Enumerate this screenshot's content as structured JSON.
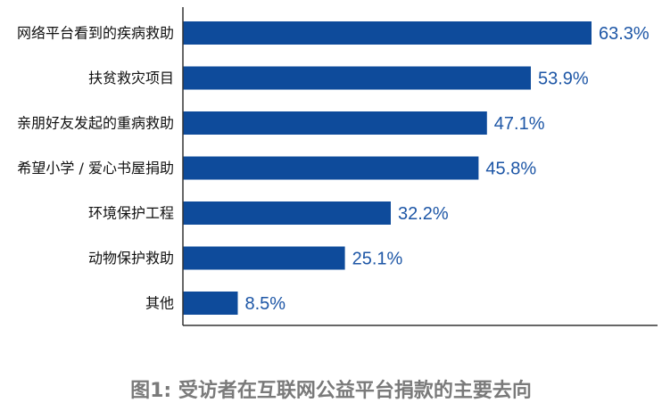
{
  "chart_data": {
    "type": "bar",
    "orientation": "horizontal",
    "title": "图1: 受访者在互联网公益平台捐款的主要去向",
    "categories": [
      "网络平台看到的疾病救助",
      "扶贫救灾项目",
      "亲朋好友发起的重病救助",
      "希望小学 / 爱心书屋捐助",
      "环境保护工程",
      "动物保护救助",
      "其他"
    ],
    "values": [
      63.3,
      53.9,
      47.1,
      45.8,
      32.2,
      25.1,
      8.5
    ],
    "value_labels": [
      "63.3%",
      "53.9%",
      "47.1%",
      "45.8%",
      "32.2%",
      "25.1%",
      "8.5%"
    ],
    "xlim": [
      0,
      63.3
    ],
    "grid": false,
    "legend": "none"
  },
  "colors": {
    "bar": "#0e4b9b",
    "value_text": "#1d56a6",
    "axis": "#333333",
    "caption": "#7a7a7a"
  }
}
